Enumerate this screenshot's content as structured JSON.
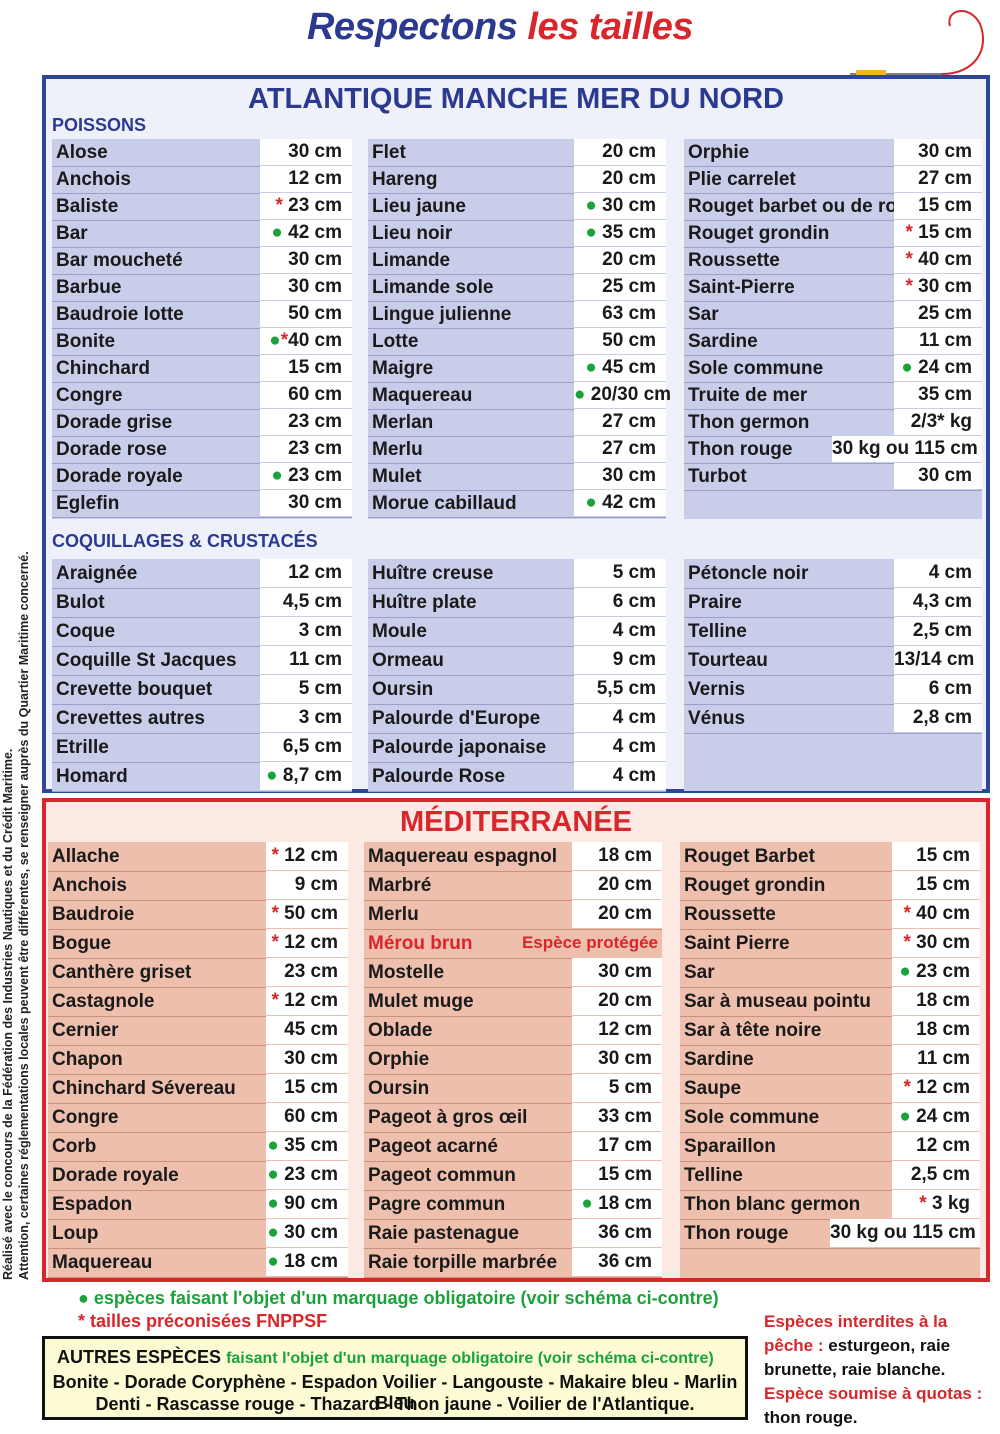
{
  "title_part1": "Respectons",
  "title_part2": "les tailles",
  "side_note_line1": "Réalisé avec le concours de la Fédération des Industries Nautiques et du Crédit Maritime.",
  "side_note_line2": "Attention, certaines réglementations locales peuvent être différentes, se renseigner auprès du Quartier Maritime concerné.",
  "atlantic": {
    "title": "ATLANTIQUE MANCHE MER DU NORD",
    "fish_header": "POISSONS",
    "shell_header": "COQUILLAGES & CRUSTACÉS",
    "fish_columns": [
      [
        {
          "name": "Alose",
          "mark": "",
          "size": "30 cm"
        },
        {
          "name": "Anchois",
          "mark": "",
          "size": "12 cm"
        },
        {
          "name": "Baliste",
          "mark": "*",
          "size": "23 cm"
        },
        {
          "name": "Bar",
          "mark": "●",
          "size": "42 cm"
        },
        {
          "name": "Bar moucheté",
          "mark": "",
          "size": "30 cm"
        },
        {
          "name": "Barbue",
          "mark": "",
          "size": "30 cm"
        },
        {
          "name": "Baudroie lotte",
          "mark": "",
          "size": "50 cm"
        },
        {
          "name": "Bonite",
          "mark": "●*",
          "size": "40 cm"
        },
        {
          "name": "Chinchard",
          "mark": "",
          "size": "15 cm"
        },
        {
          "name": "Congre",
          "mark": "",
          "size": "60 cm"
        },
        {
          "name": "Dorade grise",
          "mark": "",
          "size": "23 cm"
        },
        {
          "name": "Dorade rose",
          "mark": "",
          "size": "23 cm"
        },
        {
          "name": "Dorade royale",
          "mark": "●",
          "size": "23 cm"
        },
        {
          "name": "Eglefin",
          "mark": "",
          "size": "30 cm"
        }
      ],
      [
        {
          "name": "Flet",
          "mark": "",
          "size": "20 cm"
        },
        {
          "name": "Hareng",
          "mark": "",
          "size": "20 cm"
        },
        {
          "name": "Lieu jaune",
          "mark": "●",
          "size": "30 cm"
        },
        {
          "name": "Lieu noir",
          "mark": "●",
          "size": "35 cm"
        },
        {
          "name": "Limande",
          "mark": "",
          "size": "20 cm"
        },
        {
          "name": "Limande sole",
          "mark": "",
          "size": "25 cm"
        },
        {
          "name": "Lingue julienne",
          "mark": "",
          "size": "63 cm"
        },
        {
          "name": "Lotte",
          "mark": "",
          "size": "50 cm"
        },
        {
          "name": "Maigre",
          "mark": "●",
          "size": "45 cm"
        },
        {
          "name": "Maquereau",
          "mark": "●",
          "size": "20/30 cm"
        },
        {
          "name": "Merlan",
          "mark": "",
          "size": "27 cm"
        },
        {
          "name": "Merlu",
          "mark": "",
          "size": "27 cm"
        },
        {
          "name": "Mulet",
          "mark": "",
          "size": "30 cm"
        },
        {
          "name": "Morue cabillaud",
          "mark": "●",
          "size": "42 cm"
        }
      ],
      [
        {
          "name": "Orphie",
          "mark": "",
          "size": "30 cm"
        },
        {
          "name": "Plie carrelet",
          "mark": "",
          "size": "27 cm"
        },
        {
          "name": "Rouget barbet ou de roche",
          "mark": "",
          "size": "15 cm"
        },
        {
          "name": "Rouget grondin",
          "mark": "*",
          "size": "15 cm"
        },
        {
          "name": "Roussette",
          "mark": "*",
          "size": "40 cm"
        },
        {
          "name": "Saint-Pierre",
          "mark": "*",
          "size": "30 cm"
        },
        {
          "name": "Sar",
          "mark": "",
          "size": "25 cm"
        },
        {
          "name": "Sardine",
          "mark": "",
          "size": "11 cm"
        },
        {
          "name": "Sole commune",
          "mark": "●",
          "size": "24 cm"
        },
        {
          "name": "Truite de mer",
          "mark": "",
          "size": "35 cm"
        },
        {
          "name": "Thon germon",
          "mark": "",
          "size": "2/3* kg"
        },
        {
          "name": "Thon rouge",
          "mark": "",
          "size": "30 kg ou 115 cm"
        },
        {
          "name": "Turbot",
          "mark": "",
          "size": "30 cm"
        }
      ]
    ],
    "shell_columns": [
      [
        {
          "name": "Araignée",
          "mark": "",
          "size": "12 cm"
        },
        {
          "name": "Bulot",
          "mark": "",
          "size": "4,5 cm"
        },
        {
          "name": "Coque",
          "mark": "",
          "size": "3 cm"
        },
        {
          "name": "Coquille St Jacques",
          "mark": "",
          "size": "11 cm"
        },
        {
          "name": "Crevette bouquet",
          "mark": "",
          "size": "5 cm"
        },
        {
          "name": "Crevettes autres",
          "mark": "",
          "size": "3 cm"
        },
        {
          "name": "Etrille",
          "mark": "",
          "size": "6,5 cm"
        },
        {
          "name": "Homard",
          "mark": "●",
          "size": "8,7 cm"
        }
      ],
      [
        {
          "name": "Huître creuse",
          "mark": "",
          "size": "5 cm"
        },
        {
          "name": "Huître plate",
          "mark": "",
          "size": "6 cm"
        },
        {
          "name": "Moule",
          "mark": "",
          "size": "4 cm"
        },
        {
          "name": "Ormeau",
          "mark": "",
          "size": "9 cm"
        },
        {
          "name": "Oursin",
          "mark": "",
          "size": "5,5 cm"
        },
        {
          "name": "Palourde d'Europe",
          "mark": "",
          "size": "4 cm"
        },
        {
          "name": "Palourde japonaise",
          "mark": "",
          "size": "4 cm"
        },
        {
          "name": "Palourde Rose",
          "mark": "",
          "size": "4 cm"
        }
      ],
      [
        {
          "name": "Pétoncle noir",
          "mark": "",
          "size": "4 cm"
        },
        {
          "name": "Praire",
          "mark": "",
          "size": "4,3 cm"
        },
        {
          "name": "Telline",
          "mark": "",
          "size": "2,5 cm"
        },
        {
          "name": "Tourteau",
          "mark": "",
          "size": "13/14 cm"
        },
        {
          "name": "Vernis",
          "mark": "",
          "size": "6 cm"
        },
        {
          "name": "Vénus",
          "mark": "",
          "size": "2,8 cm"
        }
      ]
    ]
  },
  "mediterranean": {
    "title": "MÉDITERRANÉE",
    "columns": [
      [
        {
          "name": "Allache",
          "mark": "*",
          "size": "12 cm"
        },
        {
          "name": "Anchois",
          "mark": "",
          "size": "9 cm"
        },
        {
          "name": "Baudroie",
          "mark": "*",
          "size": "50 cm"
        },
        {
          "name": "Bogue",
          "mark": "*",
          "size": "12 cm"
        },
        {
          "name": "Canthère griset",
          "mark": "",
          "size": "23 cm"
        },
        {
          "name": "Castagnole",
          "mark": "*",
          "size": "12 cm"
        },
        {
          "name": "Cernier",
          "mark": "",
          "size": "45 cm"
        },
        {
          "name": "Chapon",
          "mark": "",
          "size": "30 cm"
        },
        {
          "name": "Chinchard Sévereau",
          "mark": "",
          "size": "15 cm"
        },
        {
          "name": "Congre",
          "mark": "",
          "size": "60 cm"
        },
        {
          "name": "Corb",
          "mark": "●",
          "size": "35 cm"
        },
        {
          "name": "Dorade royale",
          "mark": "●",
          "size": "23 cm"
        },
        {
          "name": "Espadon",
          "mark": "●",
          "size": "90 cm"
        },
        {
          "name": "Loup",
          "mark": "●",
          "size": "30 cm"
        },
        {
          "name": "Maquereau",
          "mark": "●",
          "size": "18 cm"
        }
      ],
      [
        {
          "name": "Maquereau espagnol",
          "mark": "",
          "size": "18 cm"
        },
        {
          "name": "Marbré",
          "mark": "",
          "size": "20 cm"
        },
        {
          "name": "Merlu",
          "mark": "",
          "size": "20 cm"
        },
        {
          "name": "Mérou brun",
          "mark": "",
          "size": "Espèce protégée",
          "protected": true
        },
        {
          "name": "Mostelle",
          "mark": "",
          "size": "30 cm"
        },
        {
          "name": "Mulet muge",
          "mark": "",
          "size": "20 cm"
        },
        {
          "name": "Oblade",
          "mark": "",
          "size": "12 cm"
        },
        {
          "name": "Orphie",
          "mark": "",
          "size": "30 cm"
        },
        {
          "name": "Oursin",
          "mark": "",
          "size": "5 cm"
        },
        {
          "name": "Pageot à gros œil",
          "mark": "",
          "size": "33 cm"
        },
        {
          "name": "Pageot acarné",
          "mark": "",
          "size": "17 cm"
        },
        {
          "name": "Pageot commun",
          "mark": "",
          "size": "15 cm"
        },
        {
          "name": "Pagre commun",
          "mark": "●",
          "size": "18 cm"
        },
        {
          "name": "Raie pastenague",
          "mark": "",
          "size": "36 cm"
        },
        {
          "name": "Raie torpille marbrée",
          "mark": "",
          "size": "36 cm"
        }
      ],
      [
        {
          "name": "Rouget Barbet",
          "mark": "",
          "size": "15 cm"
        },
        {
          "name": "Rouget grondin",
          "mark": "",
          "size": "15 cm"
        },
        {
          "name": "Roussette",
          "mark": "*",
          "size": "40 cm"
        },
        {
          "name": "Saint Pierre",
          "mark": "*",
          "size": "30 cm"
        },
        {
          "name": "Sar",
          "mark": "●",
          "size": "23 cm"
        },
        {
          "name": "Sar à museau pointu",
          "mark": "",
          "size": "18 cm"
        },
        {
          "name": "Sar à tête noire",
          "mark": "",
          "size": "18 cm"
        },
        {
          "name": "Sardine",
          "mark": "",
          "size": "11 cm"
        },
        {
          "name": "Saupe",
          "mark": "*",
          "size": "12 cm"
        },
        {
          "name": "Sole commune",
          "mark": "●",
          "size": "24 cm"
        },
        {
          "name": "Sparaillon",
          "mark": "",
          "size": "12 cm"
        },
        {
          "name": "Telline",
          "mark": "",
          "size": "2,5 cm"
        },
        {
          "name": "Thon blanc germon",
          "mark": "*",
          "size": "3 kg"
        },
        {
          "name": "Thon rouge",
          "mark": "",
          "size": "30 kg ou 115 cm"
        }
      ]
    ]
  },
  "legend_green": "● espèces faisant l'objet d'un marquage obligatoire (voir schéma ci-contre)",
  "legend_red": "* tailles préconisées FNPPSF",
  "other_species": {
    "title": "AUTRES ESPÈCES",
    "subtitle": "faisant l'objet d'un marquage obligatoire (voir schéma ci-contre)",
    "line1": "Bonite - Dorade Coryphène - Espadon Voilier - Langouste - Makaire bleu - Marlin Bleu",
    "line2": "Denti - Rascasse rouge - Thazard - Thon jaune - Voilier de l'Atlantique."
  },
  "right_note": {
    "forbidden_label": "Espèces interdites à la pêche :",
    "forbidden_list": "esturgeon, raie brunette, raie blanche.",
    "quota_label": "Espèce soumise à quotas :",
    "quota_list": "thon rouge."
  },
  "colors": {
    "blue": "#2b3a8f",
    "red": "#d8262b",
    "green": "#1aa33b",
    "atlantic_bg": "#c8cdea",
    "med_bg": "#efbfad"
  }
}
